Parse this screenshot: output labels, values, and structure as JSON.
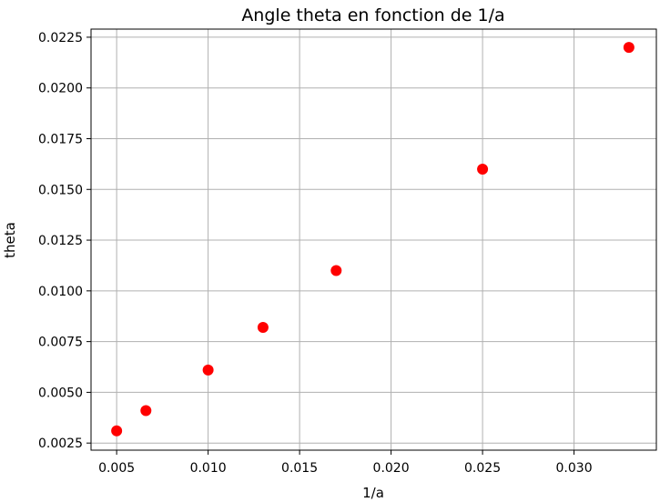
{
  "chart_data": {
    "type": "scatter",
    "title": "Angle theta en fonction de 1/a",
    "xlabel": "1/a",
    "ylabel": "theta",
    "xlim": [
      0.0036,
      0.0345
    ],
    "ylim": [
      0.00215,
      0.0229
    ],
    "xticks": [
      0.005,
      0.01,
      0.015,
      0.02,
      0.025,
      0.03
    ],
    "xtick_labels": [
      "0.005",
      "0.010",
      "0.015",
      "0.020",
      "0.025",
      "0.030"
    ],
    "yticks": [
      0.0025,
      0.005,
      0.0075,
      0.01,
      0.0125,
      0.015,
      0.0175,
      0.02,
      0.0225
    ],
    "ytick_labels": [
      "0.0025",
      "0.0050",
      "0.0075",
      "0.0100",
      "0.0125",
      "0.0150",
      "0.0175",
      "0.0200",
      "0.0225"
    ],
    "grid": true,
    "marker_color": "#ff0000",
    "x": [
      0.005,
      0.0066,
      0.01,
      0.013,
      0.017,
      0.025,
      0.033
    ],
    "y": [
      0.0031,
      0.0041,
      0.0061,
      0.0082,
      0.011,
      0.016,
      0.022
    ]
  }
}
